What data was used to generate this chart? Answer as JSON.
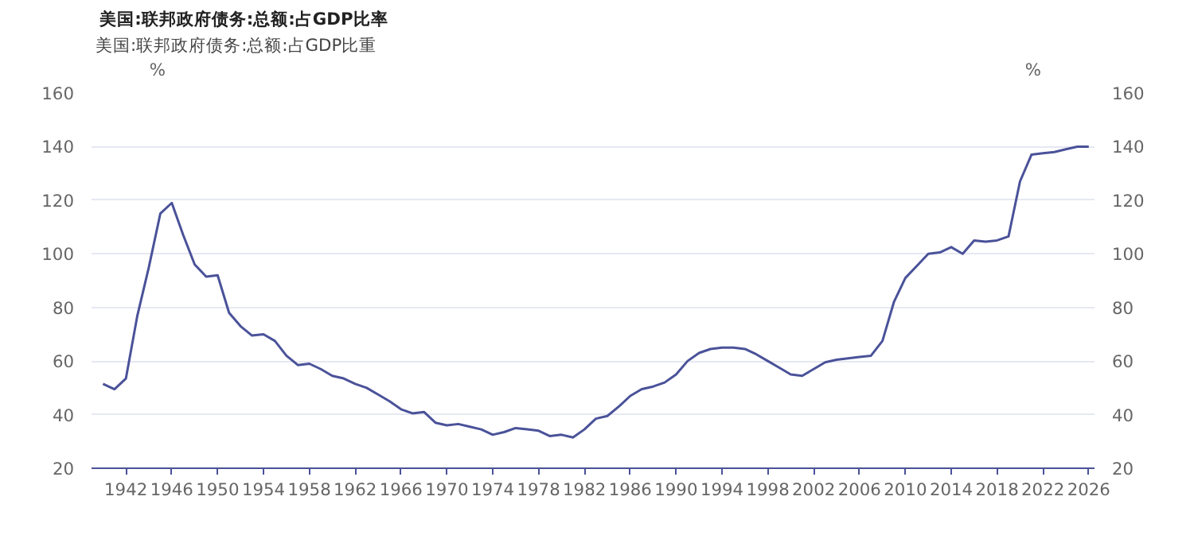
{
  "chart_data": {
    "type": "line",
    "title": "美国:联邦政府债务:总额:占GDP比率",
    "ylabel": "%",
    "y2label": "%",
    "x": [
      1940,
      1941,
      1942,
      1943,
      1944,
      1945,
      1946,
      1947,
      1948,
      1949,
      1950,
      1951,
      1952,
      1953,
      1954,
      1955,
      1956,
      1957,
      1958,
      1959,
      1960,
      1961,
      1962,
      1963,
      1964,
      1965,
      1966,
      1967,
      1968,
      1969,
      1970,
      1971,
      1972,
      1973,
      1974,
      1975,
      1976,
      1977,
      1978,
      1979,
      1980,
      1981,
      1982,
      1983,
      1984,
      1985,
      1986,
      1987,
      1988,
      1989,
      1990,
      1991,
      1992,
      1993,
      1994,
      1995,
      1996,
      1997,
      1998,
      1999,
      2000,
      2001,
      2002,
      2003,
      2004,
      2005,
      2006,
      2007,
      2008,
      2009,
      2010,
      2011,
      2012,
      2013,
      2014,
      2015,
      2016,
      2017,
      2018,
      2019,
      2020,
      2021,
      2022,
      2023,
      2024,
      2025,
      2026
    ],
    "series": [
      {
        "name": "美国:联邦政府债务:总额:占GDP比重",
        "color": "#4a5299",
        "values": [
          51.5,
          49.5,
          53.5,
          77,
          95,
          115,
          119,
          107,
          96,
          91.5,
          92,
          78,
          73,
          69.5,
          70,
          67.5,
          62,
          58.5,
          59,
          57,
          54.5,
          53.5,
          51.5,
          50,
          47.5,
          45,
          42,
          40.5,
          41,
          37,
          36,
          36.5,
          35.5,
          34.5,
          32.5,
          33.5,
          35,
          34.5,
          34,
          32,
          32.5,
          31.5,
          34.5,
          38.5,
          39.5,
          43,
          47,
          49.5,
          50.5,
          52,
          55,
          60,
          63,
          64.5,
          65,
          65,
          64.5,
          62.5,
          60,
          57.5,
          55,
          54.5,
          57,
          59.5,
          60.5,
          61,
          61.5,
          62,
          67.5,
          82,
          91,
          95.5,
          100,
          100.5,
          102.5,
          100,
          105,
          104.5,
          105,
          106.5,
          127,
          137,
          137.5,
          138,
          139,
          140,
          140
        ]
      }
    ],
    "xlim": [
      1939,
      2026.5
    ],
    "xticks": [
      1942,
      1946,
      1950,
      1954,
      1958,
      1962,
      1966,
      1970,
      1974,
      1978,
      1982,
      1986,
      1990,
      1994,
      1998,
      2002,
      2006,
      2010,
      2014,
      2018,
      2022,
      2026
    ],
    "ylim": [
      20,
      160
    ],
    "yticks": [
      20,
      40,
      60,
      80,
      100,
      120,
      140,
      160
    ],
    "y2lim": [
      20,
      160
    ],
    "y2ticks": [
      20,
      40,
      60,
      80,
      100,
      120,
      140,
      160
    ],
    "grid": "y",
    "legend": "top left",
    "marker": "none",
    "line_style": "solid"
  }
}
